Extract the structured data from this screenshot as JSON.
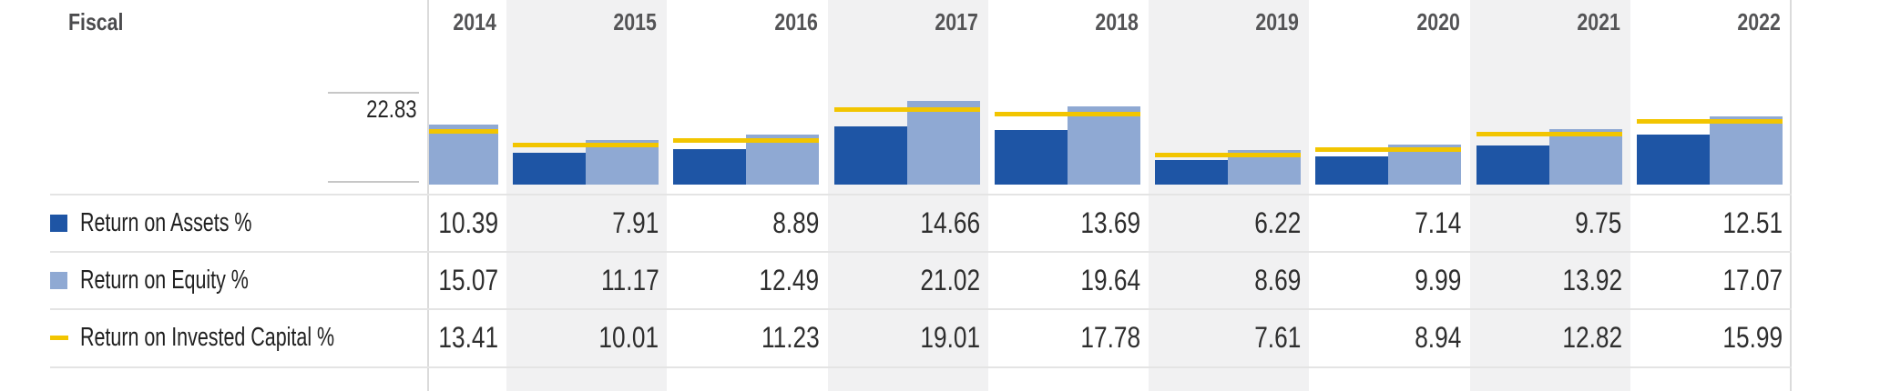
{
  "widget": {
    "fiscal_label": "Fiscal",
    "axis_tick_label": "22.83"
  },
  "chart_data": {
    "type": "bar",
    "title": "",
    "categories": [
      "2014",
      "2015",
      "2016",
      "2017",
      "2018",
      "2019",
      "2020",
      "2021",
      "2022"
    ],
    "series": [
      {
        "name": "Return on Assets %",
        "type": "bar",
        "color": "#1E55A5",
        "values": [
          10.39,
          7.91,
          8.89,
          14.66,
          13.69,
          6.22,
          7.14,
          9.75,
          12.51
        ]
      },
      {
        "name": "Return on Equity %",
        "type": "bar",
        "color": "#8FA9D3",
        "values": [
          15.07,
          11.17,
          12.49,
          21.02,
          19.64,
          8.69,
          9.99,
          13.92,
          17.07
        ]
      },
      {
        "name": "Return on Invested Capital %",
        "type": "line",
        "color": "#F2C500",
        "values": [
          13.41,
          10.01,
          11.23,
          19.01,
          17.78,
          7.61,
          8.94,
          12.82,
          15.99
        ]
      }
    ],
    "ylim": [
      0,
      22.83
    ],
    "y_axis_ticks": [
      22.83
    ],
    "grid": false,
    "legend_position": "left-table-rows",
    "striped_categories": [
      "2015",
      "2017",
      "2019",
      "2021"
    ],
    "clipped_categories": [
      "2014"
    ]
  }
}
